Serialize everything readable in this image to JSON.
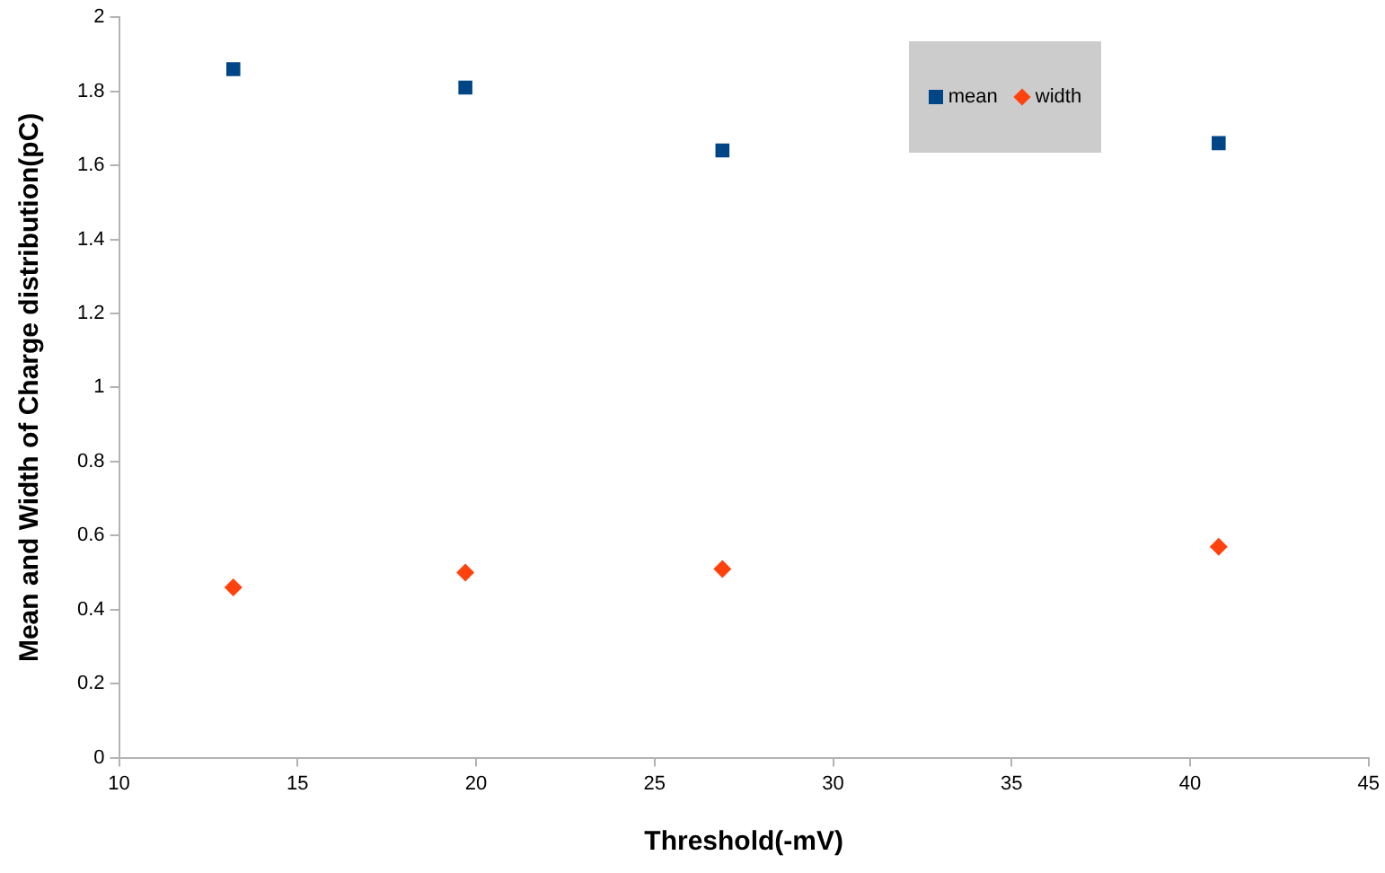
{
  "chart_data": {
    "type": "scatter",
    "xlabel": "Threshold(-mV)",
    "ylabel": "Mean and Width of Charge distribution(pC)",
    "xlim": [
      10,
      45
    ],
    "xticks": [
      10,
      15,
      20,
      25,
      30,
      35,
      40,
      45
    ],
    "ylim": [
      0,
      2
    ],
    "yticks": [
      0,
      0.2,
      0.4,
      0.6,
      0.8,
      1,
      1.2,
      1.4,
      1.6,
      1.8,
      2
    ],
    "grid": false,
    "legend": "top right",
    "series": [
      {
        "name": "mean",
        "color": "#004586",
        "marker": "square",
        "x": [
          13.2,
          19.7,
          26.9,
          40.8
        ],
        "values": [
          1.86,
          1.81,
          1.64,
          1.66
        ]
      },
      {
        "name": "width",
        "color": "#ff420e",
        "marker": "diamond",
        "x": [
          13.2,
          19.7,
          26.9,
          40.8
        ],
        "values": [
          0.46,
          0.5,
          0.51,
          0.57
        ]
      }
    ]
  }
}
